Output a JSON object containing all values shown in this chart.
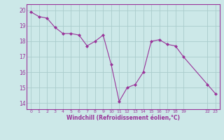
{
  "x": [
    0,
    1,
    2,
    3,
    4,
    5,
    6,
    7,
    8,
    9,
    10,
    11,
    12,
    13,
    14,
    15,
    16,
    17,
    18,
    19,
    22,
    23
  ],
  "y": [
    19.9,
    19.6,
    19.5,
    18.9,
    18.5,
    18.5,
    18.4,
    17.7,
    18.0,
    18.4,
    16.5,
    14.1,
    15.0,
    15.2,
    16.0,
    18.0,
    18.1,
    17.8,
    17.7,
    17.0,
    15.2,
    14.6
  ],
  "line_color": "#993399",
  "marker_color": "#993399",
  "bg_color": "#cce8e8",
  "grid_color": "#aacccc",
  "axis_label_color": "#993399",
  "tick_label_color": "#993399",
  "border_color": "#993399",
  "xlabel": "Windchill (Refroidissement éolien,°C)",
  "yticks": [
    14,
    15,
    16,
    17,
    18,
    19,
    20
  ],
  "xlim": [
    -0.5,
    23.5
  ],
  "ylim": [
    13.6,
    20.4
  ],
  "figsize": [
    3.2,
    2.0
  ],
  "dpi": 100
}
